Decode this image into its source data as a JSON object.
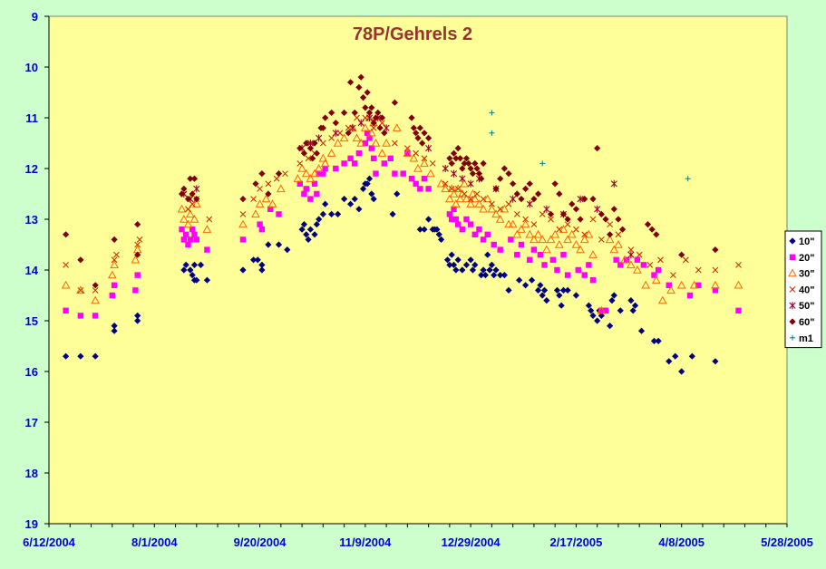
{
  "chart_data": {
    "type": "scatter",
    "title": "78P/Gehrels 2",
    "xlabel": "",
    "ylabel": "",
    "x_ticks": [
      "6/12/2004",
      "8/1/2004",
      "9/20/2004",
      "11/9/2004",
      "12/29/2004",
      "2/17/2005",
      "4/8/2005",
      "5/28/2005"
    ],
    "y_ticks": [
      "9",
      "10",
      "11",
      "12",
      "13",
      "14",
      "15",
      "16",
      "17",
      "18",
      "19"
    ],
    "ylim": [
      9,
      19
    ],
    "y_inverted": true,
    "xlim_days": [
      0,
      350
    ],
    "grid": false,
    "legend_position": "right",
    "colors": {
      "background": "#ccffcc",
      "plot_area": "#ffff99",
      "title": "#993333",
      "axis_text": "#0000cc"
    },
    "series": [
      {
        "name": "10\"",
        "marker": "diamond",
        "color": "#000080",
        "x": [
          8,
          15,
          22,
          31,
          31,
          42,
          42,
          64,
          65,
          67,
          68,
          69,
          69,
          70,
          72,
          75,
          92,
          97,
          99,
          101,
          101,
          104,
          109,
          113,
          120,
          121,
          122,
          123,
          124,
          126,
          127,
          128,
          130,
          131,
          134,
          137,
          140,
          143,
          145,
          147,
          149,
          150,
          151,
          152,
          153,
          154,
          163,
          165,
          176,
          178,
          180,
          182,
          183,
          184,
          185,
          186,
          189,
          190,
          191,
          192,
          193,
          194,
          196,
          198,
          200,
          201,
          202,
          205,
          206,
          207,
          208,
          209,
          210,
          211,
          212,
          214,
          216,
          218,
          223,
          226,
          229,
          232,
          233,
          234,
          235,
          236,
          241,
          242,
          243,
          244,
          246,
          250,
          256,
          257,
          258,
          260,
          261,
          262,
          264,
          266,
          267,
          268,
          271,
          276,
          277,
          278,
          281,
          287,
          289,
          294,
          297,
          300,
          305,
          316
        ],
        "y": [
          15.7,
          15.7,
          15.7,
          15.2,
          15.1,
          15.0,
          14.9,
          14.0,
          13.9,
          14.0,
          14.1,
          14.2,
          13.9,
          14.2,
          13.9,
          14.2,
          14.0,
          13.8,
          13.8,
          14.0,
          13.9,
          13.5,
          13.5,
          13.6,
          13.2,
          13.1,
          13.3,
          13.4,
          13.2,
          13.3,
          13.1,
          13.0,
          12.9,
          12.7,
          12.9,
          12.9,
          12.6,
          12.7,
          12.6,
          12.8,
          12.4,
          12.3,
          12.3,
          12.2,
          12.5,
          12.6,
          12.9,
          12.5,
          13.2,
          13.2,
          13.0,
          13.2,
          13.2,
          13.2,
          13.3,
          13.4,
          13.8,
          13.9,
          13.7,
          13.9,
          14.0,
          13.8,
          14.0,
          13.9,
          13.8,
          14.0,
          13.9,
          14.1,
          14.0,
          14.1,
          13.7,
          14.0,
          13.9,
          14.1,
          14.0,
          14.1,
          14.1,
          14.4,
          14.2,
          14.3,
          14.2,
          14.4,
          14.3,
          14.5,
          14.4,
          14.6,
          14.4,
          14.5,
          14.7,
          14.4,
          14.4,
          14.5,
          14.7,
          14.8,
          14.9,
          15.0,
          14.8,
          14.9,
          14.8,
          15.1,
          14.6,
          14.5,
          14.8,
          14.6,
          14.8,
          14.7,
          15.2,
          15.4,
          15.4,
          15.8,
          15.7,
          16.0,
          15.7,
          15.8
        ],
        "y_note": ""
      },
      {
        "name": "20\"",
        "marker": "square",
        "color": "#ff00ff",
        "x": [
          8,
          15,
          22,
          30,
          31,
          41,
          42,
          63,
          64,
          65,
          66,
          67,
          68,
          69,
          70,
          75,
          92,
          100,
          101,
          105,
          109,
          119,
          121,
          122,
          124,
          126,
          127,
          128,
          130,
          131,
          136,
          140,
          143,
          145,
          147,
          150,
          151,
          152,
          153,
          154,
          155,
          159,
          162,
          164,
          168,
          170,
          172,
          174,
          176,
          178,
          180,
          190,
          191,
          192,
          193,
          194,
          196,
          198,
          200,
          202,
          204,
          206,
          208,
          211,
          214,
          219,
          222,
          224,
          228,
          230,
          233,
          235,
          239,
          241,
          244,
          246,
          251,
          254,
          256,
          258,
          262,
          264,
          269,
          271,
          274,
          279,
          282,
          287,
          289,
          294,
          304,
          308,
          316,
          327
        ],
        "y": [
          14.8,
          14.9,
          14.9,
          14.5,
          14.3,
          14.4,
          14.1,
          13.2,
          13.4,
          13.3,
          13.5,
          13.4,
          13.2,
          13.3,
          13.4,
          13.6,
          13.4,
          13.1,
          13.2,
          12.8,
          12.9,
          12.3,
          12.5,
          12.4,
          12.6,
          12.3,
          12.5,
          12.1,
          12.1,
          12.0,
          12.0,
          11.9,
          11.8,
          11.9,
          11.7,
          11.5,
          11.3,
          11.4,
          11.6,
          11.8,
          12.1,
          11.9,
          11.8,
          12.1,
          12.1,
          11.7,
          12.2,
          12.3,
          12.4,
          12.2,
          12.4,
          12.9,
          13.0,
          12.8,
          13.0,
          13.1,
          13.2,
          13.0,
          13.1,
          13.3,
          13.2,
          13.4,
          13.3,
          13.5,
          13.6,
          13.4,
          13.7,
          13.5,
          13.8,
          13.6,
          13.7,
          13.9,
          13.8,
          14.0,
          13.7,
          14.1,
          14.0,
          14.1,
          13.9,
          14.2,
          14.8,
          14.8,
          13.8,
          13.9,
          13.8,
          13.8,
          13.9,
          14.1,
          14.0,
          14.3,
          14.5,
          14.3,
          14.4,
          14.8
        ],
        "y_note": ""
      },
      {
        "name": "30\"",
        "marker": "triangle",
        "color": "#ff6600",
        "x": [
          8,
          15,
          22,
          30,
          31,
          41,
          42,
          63,
          64,
          66,
          67,
          69,
          70,
          75,
          92,
          98,
          100,
          103,
          106,
          110,
          118,
          120,
          122,
          124,
          126,
          128,
          130,
          131,
          134,
          137,
          140,
          144,
          146,
          148,
          150,
          152,
          153,
          154,
          155,
          158,
          160,
          165,
          170,
          173,
          175,
          178,
          181,
          186,
          188,
          190,
          191,
          192,
          193,
          194,
          195,
          196,
          197,
          198,
          200,
          201,
          202,
          204,
          206,
          208,
          210,
          212,
          214,
          216,
          218,
          220,
          222,
          224,
          226,
          228,
          230,
          232,
          234,
          236,
          238,
          240,
          242,
          244,
          246,
          248,
          250,
          252,
          254,
          256,
          258,
          262,
          266,
          268,
          270,
          273,
          276,
          279,
          283,
          288,
          291,
          295,
          300,
          306,
          316,
          327
        ],
        "y": [
          14.3,
          14.4,
          14.6,
          14.1,
          13.9,
          13.8,
          13.6,
          12.8,
          13.0,
          13.1,
          12.9,
          13.0,
          12.7,
          13.2,
          13.1,
          12.9,
          12.7,
          12.6,
          12.7,
          12.4,
          12.2,
          12.0,
          12.1,
          12.2,
          12.1,
          12.0,
          11.8,
          11.9,
          11.7,
          11.5,
          11.4,
          11.2,
          11.4,
          11.5,
          11.2,
          11.0,
          11.3,
          11.1,
          11.5,
          11.7,
          11.5,
          11.2,
          11.7,
          11.8,
          12.0,
          11.9,
          12.1,
          12.3,
          12.4,
          12.6,
          12.4,
          12.5,
          12.7,
          12.4,
          12.6,
          12.5,
          12.3,
          12.6,
          12.7,
          12.5,
          12.6,
          12.7,
          12.8,
          12.6,
          12.8,
          12.9,
          13.0,
          12.8,
          13.1,
          13.1,
          13.3,
          13.2,
          13.1,
          13.3,
          13.4,
          13.3,
          13.4,
          13.6,
          13.4,
          13.3,
          13.5,
          13.2,
          13.4,
          13.3,
          13.5,
          13.6,
          13.4,
          13.3,
          13.7,
          14.8,
          13.4,
          13.6,
          13.5,
          13.8,
          13.9,
          14.0,
          14.3,
          14.2,
          14.6,
          14.4,
          14.3,
          14.3,
          14.3,
          14.3
        ],
        "y_note": ""
      },
      {
        "name": "40\"",
        "marker": "x",
        "color": "#cc3300",
        "x": [
          8,
          15,
          22,
          31,
          32,
          42,
          43,
          64,
          66,
          68,
          70,
          76,
          92,
          97,
          100,
          104,
          108,
          112,
          119,
          123,
          126,
          130,
          134,
          138,
          142,
          146,
          150,
          154,
          158,
          164,
          170,
          174,
          178,
          182,
          188,
          191,
          194,
          197,
          200,
          203,
          206,
          210,
          214,
          218,
          222,
          226,
          230,
          234,
          238,
          242,
          246,
          250,
          254,
          258,
          262,
          266,
          270,
          276,
          280,
          285,
          290,
          296,
          302,
          308,
          316,
          327
        ],
        "y": [
          13.9,
          14.4,
          14.4,
          13.8,
          13.7,
          13.5,
          13.4,
          12.5,
          12.8,
          12.7,
          12.6,
          13.0,
          12.9,
          12.6,
          12.4,
          12.3,
          12.2,
          12.1,
          11.9,
          11.8,
          11.7,
          11.5,
          11.4,
          11.3,
          11.2,
          11.0,
          11.0,
          11.2,
          11.1,
          11.5,
          11.6,
          11.7,
          11.8,
          11.9,
          12.3,
          12.4,
          12.4,
          12.5,
          12.6,
          12.5,
          12.6,
          12.7,
          12.8,
          12.7,
          12.9,
          13.0,
          13.1,
          12.9,
          13.0,
          13.2,
          13.1,
          13.2,
          13.3,
          13.0,
          13.4,
          13.1,
          13.3,
          13.6,
          13.7,
          13.9,
          13.8,
          14.1,
          13.8,
          14.0,
          14.0,
          13.9
        ],
        "y_note": ""
      },
      {
        "name": "50\"",
        "marker": "star",
        "color": "#990033",
        "x": [
          64,
          67,
          70,
          120,
          124,
          128,
          136,
          144,
          148,
          152,
          156,
          160,
          180,
          188,
          192,
          196,
          200,
          204,
          212,
          220,
          228,
          236,
          244,
          252,
          260,
          268,
          276
        ],
        "y": [
          12.5,
          12.6,
          12.4,
          11.6,
          11.5,
          11.4,
          11.3,
          11.2,
          11.1,
          11.0,
          11.0,
          11.2,
          11.6,
          12.0,
          12.1,
          12.2,
          12.3,
          12.2,
          12.4,
          12.6,
          12.7,
          12.8,
          12.9,
          12.6,
          12.8,
          12.3,
          13.7
        ],
        "y_note": ""
      },
      {
        "name": "60\"",
        "marker": "diamond",
        "color": "#800000",
        "x": [
          8,
          15,
          22,
          31,
          42,
          42,
          63,
          64,
          66,
          67,
          68,
          69,
          70,
          92,
          98,
          101,
          104,
          109,
          119,
          121,
          122,
          124,
          125,
          126,
          127,
          129,
          130,
          131,
          134,
          136,
          140,
          142,
          143,
          145,
          147,
          148,
          149,
          150,
          151,
          152,
          153,
          154,
          155,
          156,
          157,
          158,
          159,
          164,
          172,
          173,
          174,
          175,
          176,
          177,
          178,
          180,
          190,
          191,
          192,
          193,
          194,
          195,
          196,
          197,
          198,
          199,
          200,
          201,
          202,
          203,
          204,
          205,
          206,
          212,
          214,
          216,
          218,
          220,
          222,
          224,
          226,
          228,
          230,
          232,
          238,
          240,
          242,
          244,
          246,
          248,
          250,
          252,
          254,
          258,
          260,
          262,
          264,
          266,
          268,
          270,
          272,
          284,
          286,
          288,
          300,
          316
        ],
        "y": [
          13.3,
          13.8,
          14.3,
          13.4,
          13.1,
          13.7,
          12.5,
          12.4,
          12.6,
          12.2,
          12.5,
          12.2,
          12.6,
          12.6,
          12.3,
          12.1,
          12.5,
          12.1,
          11.6,
          11.7,
          11.5,
          11.6,
          11.8,
          11.5,
          11.7,
          11.2,
          11.2,
          11.0,
          10.9,
          11.1,
          10.9,
          11.3,
          10.3,
          10.9,
          10.4,
          10.2,
          10.6,
          10.8,
          10.5,
          10.9,
          10.8,
          11.1,
          11.0,
          10.9,
          11.2,
          11.0,
          11.3,
          10.7,
          11.0,
          11.2,
          11.3,
          11.4,
          11.2,
          11.5,
          11.3,
          11.4,
          11.8,
          11.9,
          11.7,
          11.8,
          11.6,
          11.8,
          12.0,
          11.9,
          11.8,
          11.9,
          12.0,
          12.1,
          11.9,
          12.0,
          12.1,
          12.2,
          11.9,
          12.4,
          12.2,
          12.0,
          12.1,
          12.3,
          12.5,
          12.6,
          12.4,
          12.3,
          12.6,
          12.5,
          12.9,
          12.3,
          12.5,
          12.9,
          13.0,
          12.7,
          12.8,
          13.0,
          12.6,
          12.6,
          11.6,
          12.9,
          13.0,
          13.3,
          12.8,
          13.0,
          13.2,
          13.1,
          13.2,
          13.3,
          13.7,
          13.6
        ],
        "y_note": ""
      },
      {
        "name": "m1",
        "marker": "plus",
        "color": "#008080",
        "x": [
          210,
          210,
          234,
          303
        ],
        "y": [
          10.9,
          11.3,
          11.9,
          12.2
        ],
        "y_note": ""
      }
    ]
  }
}
